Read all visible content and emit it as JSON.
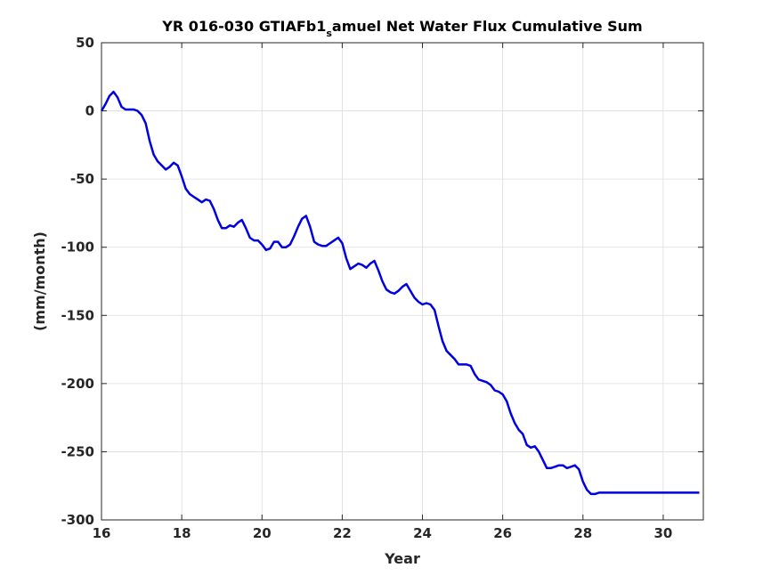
{
  "chart_data": {
    "type": "line",
    "title_main": "YR 016-030 GTIAFb1",
    "title_sub": "s",
    "title_rest": "amuel Net Water Flux Cumulative Sum",
    "xlabel": "Year",
    "ylabel": "(mm/month)",
    "xlim": [
      16,
      31
    ],
    "ylim": [
      -300,
      50
    ],
    "xticks": [
      16,
      18,
      20,
      22,
      24,
      26,
      28,
      30
    ],
    "yticks": [
      50,
      0,
      -50,
      -100,
      -150,
      -200,
      -250,
      -300
    ],
    "xtick_labels": [
      "16",
      "18",
      "20",
      "22",
      "24",
      "26",
      "28",
      "30"
    ],
    "ytick_labels": [
      "50",
      "0",
      "-50",
      "-100",
      "-150",
      "-200",
      "-250",
      "-300"
    ],
    "grid": true,
    "line_color": "#0000e0",
    "series": [
      {
        "x": [
          16.0,
          16.1,
          16.2,
          16.3,
          16.4,
          16.5,
          16.6,
          16.7,
          16.8,
          16.9,
          17.0,
          17.1,
          17.2,
          17.3,
          17.4,
          17.5,
          17.6,
          17.7,
          17.8,
          17.9,
          18.0,
          18.1,
          18.2,
          18.3,
          18.4,
          18.5,
          18.6,
          18.7,
          18.8,
          18.9,
          19.0,
          19.1,
          19.2,
          19.3,
          19.4,
          19.5,
          19.6,
          19.7,
          19.8,
          19.9,
          20.0,
          20.1,
          20.2,
          20.3,
          20.4,
          20.5,
          20.6,
          20.7,
          20.8,
          20.9,
          21.0,
          21.1,
          21.2,
          21.3,
          21.4,
          21.5,
          21.6,
          21.7,
          21.8,
          21.9,
          22.0,
          22.1,
          22.2,
          22.3,
          22.4,
          22.5,
          22.6,
          22.7,
          22.8,
          22.9,
          23.0,
          23.1,
          23.2,
          23.3,
          23.4,
          23.5,
          23.6,
          23.7,
          23.8,
          23.9,
          24.0,
          24.1,
          24.2,
          24.3,
          24.4,
          24.5,
          24.6,
          24.7,
          24.8,
          24.9,
          25.0,
          25.1,
          25.2,
          25.3,
          25.4,
          25.5,
          25.6,
          25.7,
          25.8,
          25.9,
          26.0,
          26.1,
          26.2,
          26.3,
          26.4,
          26.5,
          26.6,
          26.7,
          26.8,
          26.9,
          27.0,
          27.1,
          27.2,
          27.3,
          27.4,
          27.5,
          27.6,
          27.7,
          27.8,
          27.9,
          28.0,
          28.1,
          28.2,
          28.3,
          28.4,
          28.5,
          28.6,
          28.7,
          28.8,
          28.9,
          29.0,
          29.1,
          29.2,
          29.3,
          29.4,
          29.5,
          29.6,
          29.7,
          29.8,
          29.9,
          30.0,
          30.1,
          30.2,
          30.3,
          30.4,
          30.5,
          30.6,
          30.7,
          30.8,
          30.9
        ],
        "y": [
          0,
          5,
          11,
          14,
          10,
          3,
          1,
          1,
          1,
          0,
          -3,
          -9,
          -22,
          -32,
          -37,
          -40,
          -43,
          -41,
          -38,
          -40,
          -48,
          -57,
          -61,
          -63,
          -65,
          -67,
          -65,
          -66,
          -72,
          -80,
          -86,
          -86,
          -84,
          -85,
          -82,
          -80,
          -86,
          -93,
          -95,
          -95,
          -98,
          -102,
          -101,
          -96,
          -96,
          -100,
          -100,
          -98,
          -92,
          -85,
          -79,
          -77,
          -85,
          -96,
          -98,
          -99,
          -99,
          -97,
          -95,
          -93,
          -97,
          -108,
          -116,
          -114,
          -112,
          -113,
          -115,
          -112,
          -110,
          -117,
          -125,
          -131,
          -133,
          -134,
          -132,
          -129,
          -127,
          -132,
          -137,
          -140,
          -142,
          -141,
          -142,
          -146,
          -158,
          -169,
          -176,
          -179,
          -182,
          -186,
          -186,
          -186,
          -187,
          -193,
          -197,
          -198,
          -199,
          -201,
          -205,
          -206,
          -208,
          -213,
          -222,
          -229,
          -234,
          -237,
          -245,
          -247,
          -246,
          -250,
          -256,
          -262,
          -262,
          -261,
          -260,
          -260,
          -262,
          -261,
          -260,
          -263,
          -272,
          -278,
          -281,
          -281,
          -280,
          -280,
          -280,
          -280,
          -280,
          -280,
          -280,
          -280,
          -280,
          -280,
          -280,
          -280,
          -280,
          -280,
          -280,
          -280,
          -280,
          -280,
          -280,
          -280,
          -280,
          -280,
          -280,
          -280,
          -280,
          -280
        ]
      }
    ]
  }
}
